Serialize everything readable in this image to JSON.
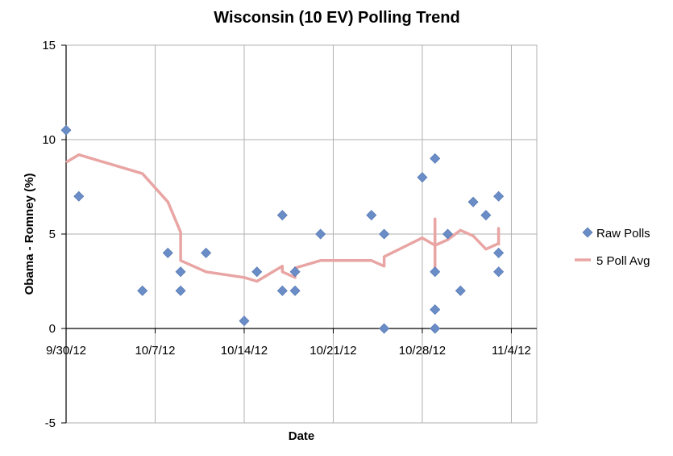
{
  "chart_data": {
    "type": "scatter",
    "title": "Wisconsin (10 EV) Polling Trend",
    "xlabel": "Date",
    "ylabel": "Obama - Romney (%)",
    "x_ticks": [
      "9/30/12",
      "10/7/12",
      "10/14/12",
      "10/21/12",
      "10/28/12",
      "11/4/12"
    ],
    "y_ticks": [
      15,
      10,
      5,
      0,
      -5
    ],
    "xlim": [
      "9/30/12",
      "11/6/12"
    ],
    "ylim": [
      -5,
      15
    ],
    "grid": true,
    "legend_position": "right",
    "series": [
      {
        "name": "Raw Polls",
        "kind": "scatter",
        "color": "#6a8dc8",
        "points": [
          {
            "x": "9/30/12",
            "y": 10.5
          },
          {
            "x": "10/1/12",
            "y": 7
          },
          {
            "x": "10/6/12",
            "y": 2
          },
          {
            "x": "10/8/12",
            "y": 4
          },
          {
            "x": "10/9/12",
            "y": 3
          },
          {
            "x": "10/9/12",
            "y": 2
          },
          {
            "x": "10/11/12",
            "y": 4
          },
          {
            "x": "10/14/12",
            "y": 0.4
          },
          {
            "x": "10/15/12",
            "y": 3
          },
          {
            "x": "10/17/12",
            "y": 6
          },
          {
            "x": "10/17/12",
            "y": 2
          },
          {
            "x": "10/18/12",
            "y": 3
          },
          {
            "x": "10/18/12",
            "y": 2
          },
          {
            "x": "10/20/12",
            "y": 5
          },
          {
            "x": "10/24/12",
            "y": 6
          },
          {
            "x": "10/25/12",
            "y": 5
          },
          {
            "x": "10/25/12",
            "y": 0
          },
          {
            "x": "10/28/12",
            "y": 8
          },
          {
            "x": "10/29/12",
            "y": 9
          },
          {
            "x": "10/29/12",
            "y": 3
          },
          {
            "x": "10/29/12",
            "y": 1
          },
          {
            "x": "10/29/12",
            "y": 0
          },
          {
            "x": "10/30/12",
            "y": 5
          },
          {
            "x": "10/31/12",
            "y": 2
          },
          {
            "x": "11/1/12",
            "y": 6.7
          },
          {
            "x": "11/2/12",
            "y": 6
          },
          {
            "x": "11/3/12",
            "y": 7
          },
          {
            "x": "11/3/12",
            "y": 4
          },
          {
            "x": "11/3/12",
            "y": 3
          }
        ]
      },
      {
        "name": "5 Poll Avg",
        "kind": "line",
        "color": "#e8a5a3",
        "points": [
          {
            "x": "9/30/12",
            "y": 8.8
          },
          {
            "x": "10/1/12",
            "y": 9.2
          },
          {
            "x": "10/6/12",
            "y": 8.2
          },
          {
            "x": "10/8/12",
            "y": 6.7
          },
          {
            "x": "10/9/12",
            "y": 5.1
          },
          {
            "x": "10/9/12",
            "y": 3.6
          },
          {
            "x": "10/11/12",
            "y": 3.0
          },
          {
            "x": "10/14/12",
            "y": 2.7
          },
          {
            "x": "10/15/12",
            "y": 2.5
          },
          {
            "x": "10/17/12",
            "y": 3.3
          },
          {
            "x": "10/17/12",
            "y": 3.0
          },
          {
            "x": "10/18/12",
            "y": 2.7
          },
          {
            "x": "10/18/12",
            "y": 3.2
          },
          {
            "x": "10/20/12",
            "y": 3.6
          },
          {
            "x": "10/24/12",
            "y": 3.6
          },
          {
            "x": "10/25/12",
            "y": 3.3
          },
          {
            "x": "10/25/12",
            "y": 3.8
          },
          {
            "x": "10/28/12",
            "y": 4.8
          },
          {
            "x": "10/29/12",
            "y": 4.4
          },
          {
            "x": "10/29/12",
            "y": 5.8
          },
          {
            "x": "10/29/12",
            "y": 3.2
          },
          {
            "x": "10/29/12",
            "y": 4.4
          },
          {
            "x": "10/30/12",
            "y": 4.7
          },
          {
            "x": "10/31/12",
            "y": 5.2
          },
          {
            "x": "11/1/12",
            "y": 4.9
          },
          {
            "x": "11/2/12",
            "y": 4.2
          },
          {
            "x": "11/3/12",
            "y": 4.5
          },
          {
            "x": "11/3/12",
            "y": 5.3
          },
          {
            "x": "11/3/12",
            "y": 4.4
          }
        ]
      }
    ]
  }
}
